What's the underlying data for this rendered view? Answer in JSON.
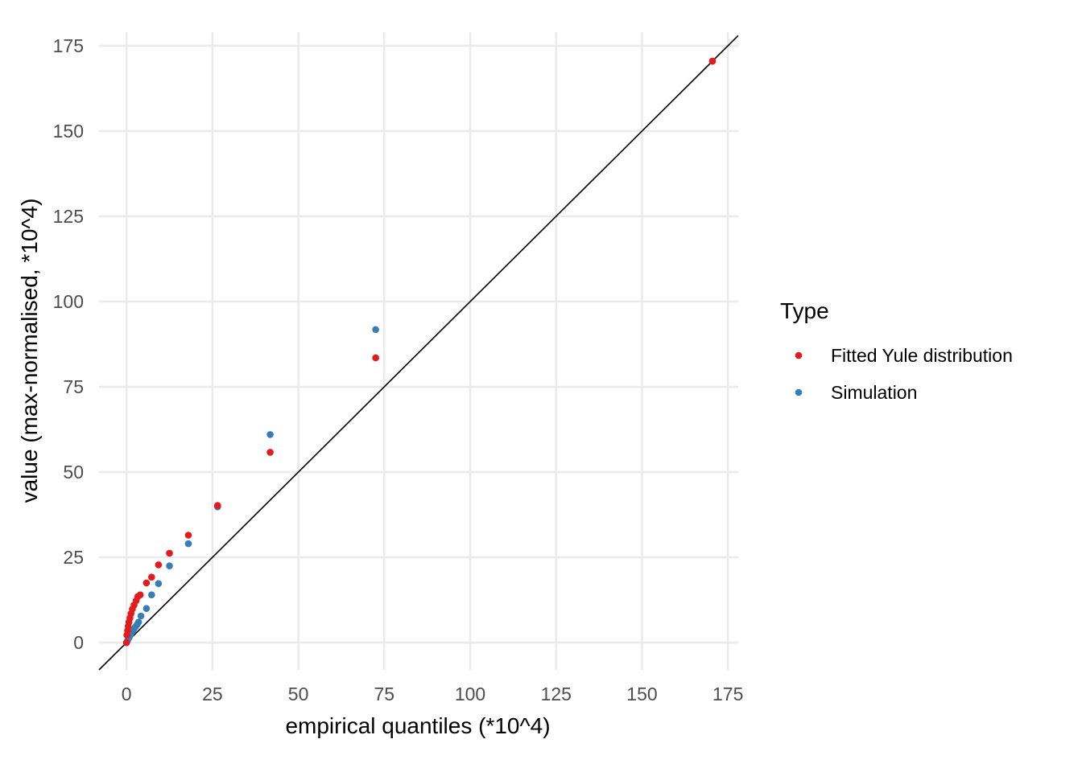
{
  "chart_data": {
    "type": "scatter",
    "title": "",
    "xlabel": "empirical quantiles (*10^4)",
    "ylabel": "value (max-normalised, *10^4)",
    "xlim": [
      -8,
      178
    ],
    "ylim": [
      -8,
      179
    ],
    "x_ticks": [
      0,
      25,
      50,
      75,
      100,
      125,
      150,
      175
    ],
    "y_ticks": [
      0,
      25,
      50,
      75,
      100,
      125,
      150,
      175
    ],
    "x_tick_labels": [
      "0",
      "25",
      "50",
      "75",
      "100",
      "125",
      "150",
      "175"
    ],
    "y_tick_labels": [
      "0",
      "25",
      "50",
      "75",
      "100",
      "125",
      "150",
      "175"
    ],
    "grid": true,
    "reference_line": {
      "slope": 1,
      "intercept": 0,
      "color": "#000000"
    },
    "legend": {
      "title": "Type",
      "position": "right",
      "entries": [
        "Fitted Yule distribution",
        "Simulation"
      ]
    },
    "series": [
      {
        "name": "Fitted Yule distribution",
        "color": "#E41A1C",
        "points": [
          [
            0.0,
            0.0
          ],
          [
            0.1,
            2.2
          ],
          [
            0.3,
            3.5
          ],
          [
            0.5,
            4.8
          ],
          [
            0.7,
            6.0
          ],
          [
            1.0,
            7.2
          ],
          [
            1.3,
            8.5
          ],
          [
            1.7,
            9.8
          ],
          [
            2.2,
            11.0
          ],
          [
            2.8,
            12.3
          ],
          [
            3.3,
            13.5
          ],
          [
            4.0,
            14.0
          ],
          [
            5.8,
            17.5
          ],
          [
            7.3,
            19.2
          ],
          [
            9.3,
            22.8
          ],
          [
            12.5,
            26.2
          ],
          [
            18.0,
            31.5
          ],
          [
            26.5,
            40.2
          ],
          [
            41.8,
            55.8
          ],
          [
            72.5,
            83.5
          ],
          [
            170.5,
            170.5
          ]
        ]
      },
      {
        "name": "Simulation",
        "color": "#377EB8",
        "points": [
          [
            0.0,
            0.0
          ],
          [
            0.3,
            0.6
          ],
          [
            0.6,
            1.2
          ],
          [
            0.9,
            1.8
          ],
          [
            1.3,
            2.5
          ],
          [
            1.7,
            3.2
          ],
          [
            2.1,
            3.9
          ],
          [
            2.6,
            4.6
          ],
          [
            3.1,
            5.3
          ],
          [
            3.5,
            6.0
          ],
          [
            4.2,
            7.8
          ],
          [
            5.8,
            10.0
          ],
          [
            7.3,
            14.0
          ],
          [
            9.3,
            17.3
          ],
          [
            12.5,
            22.5
          ],
          [
            18.0,
            29.0
          ],
          [
            26.5,
            39.8
          ],
          [
            41.8,
            61.0
          ],
          [
            72.5,
            91.8
          ],
          [
            170.5,
            170.5
          ]
        ]
      }
    ]
  }
}
